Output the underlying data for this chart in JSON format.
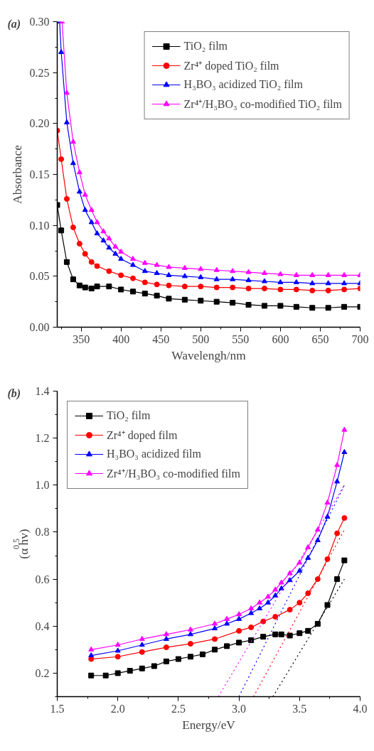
{
  "chart_data": [
    {
      "type": "line",
      "title": "(a)",
      "xlabel": "Wavelengh/nm",
      "ylabel": "Absorbance",
      "xlim": [
        320,
        700
      ],
      "xticks": [
        350,
        400,
        450,
        500,
        550,
        600,
        650,
        700
      ],
      "ylim": [
        0,
        0.3
      ],
      "yticks": [
        {
          "value": 0,
          "label": "0.00"
        },
        {
          "value": 0.05,
          "label": "0.05"
        },
        {
          "value": 0.1,
          "label": "0.10"
        },
        {
          "value": 0.15,
          "label": "0.15"
        },
        {
          "value": 0.2,
          "label": "0.20"
        },
        {
          "value": 0.25,
          "label": "0.25"
        },
        {
          "value": 0.3,
          "label": "0.30"
        }
      ],
      "grid": false,
      "legend": "top right",
      "line_style": "solid",
      "series": [
        {
          "name": "TiO₂ film",
          "color": "#000000",
          "marker": "square",
          "x": [
            320,
            325,
            332,
            340,
            348,
            355,
            363,
            370,
            385,
            400,
            415,
            430,
            445,
            460,
            480,
            500,
            520,
            540,
            560,
            580,
            600,
            620,
            640,
            660,
            680,
            700
          ],
          "values": [
            0.12,
            0.095,
            0.064,
            0.047,
            0.041,
            0.039,
            0.038,
            0.04,
            0.04,
            0.037,
            0.035,
            0.033,
            0.031,
            0.028,
            0.027,
            0.026,
            0.025,
            0.024,
            0.022,
            0.021,
            0.021,
            0.02,
            0.019,
            0.019,
            0.02,
            0.02
          ]
        },
        {
          "name": "Zr⁴⁺ doped TiO₂ film",
          "color": "#ff0000",
          "marker": "circle",
          "x": [
            320,
            325,
            332,
            340,
            348,
            355,
            363,
            370,
            385,
            400,
            415,
            430,
            445,
            460,
            480,
            500,
            520,
            540,
            560,
            580,
            600,
            620,
            640,
            660,
            680,
            700
          ],
          "values": [
            0.193,
            0.165,
            0.126,
            0.098,
            0.082,
            0.072,
            0.064,
            0.06,
            0.055,
            0.051,
            0.048,
            0.044,
            0.042,
            0.041,
            0.04,
            0.04,
            0.039,
            0.039,
            0.038,
            0.038,
            0.037,
            0.037,
            0.036,
            0.036,
            0.037,
            0.038
          ]
        },
        {
          "name": "H₃BO₃ acidized TiO₂ film",
          "color": "#0000ff",
          "marker": "triangle",
          "x": [
            323,
            325,
            332,
            340,
            348,
            355,
            363,
            370,
            378,
            385,
            393,
            400,
            415,
            430,
            445,
            460,
            480,
            500,
            520,
            540,
            560,
            580,
            600,
            620,
            640,
            660,
            680,
            700
          ],
          "values": [
            0.3,
            0.27,
            0.201,
            0.161,
            0.133,
            0.115,
            0.103,
            0.092,
            0.085,
            0.078,
            0.072,
            0.067,
            0.061,
            0.055,
            0.053,
            0.051,
            0.05,
            0.049,
            0.047,
            0.047,
            0.046,
            0.045,
            0.044,
            0.044,
            0.043,
            0.043,
            0.043,
            0.043
          ]
        },
        {
          "name": "Zr⁴⁺/H₃BO₃ co-modified TiO₂ film",
          "color": "#ff00ff",
          "marker": "triangle",
          "x": [
            326,
            332,
            340,
            348,
            355,
            363,
            370,
            378,
            385,
            393,
            400,
            415,
            430,
            445,
            460,
            480,
            500,
            520,
            540,
            560,
            580,
            600,
            620,
            640,
            660,
            680,
            700
          ],
          "values": [
            0.3,
            0.23,
            0.182,
            0.152,
            0.13,
            0.115,
            0.103,
            0.094,
            0.087,
            0.079,
            0.074,
            0.067,
            0.063,
            0.061,
            0.059,
            0.058,
            0.057,
            0.056,
            0.055,
            0.054,
            0.053,
            0.052,
            0.051,
            0.051,
            0.051,
            0.051,
            0.051
          ]
        }
      ]
    },
    {
      "type": "line",
      "title": "(b)",
      "xlabel": "Energy/eV",
      "ylabel": "(α hv)$^{0.5}$",
      "xlim": [
        1.5,
        4.0
      ],
      "xticks": [
        {
          "value": 1.5,
          "label": "1.5"
        },
        {
          "value": 2.0,
          "label": "2.0"
        },
        {
          "value": 2.5,
          "label": "2.5"
        },
        {
          "value": 3.0,
          "label": "3.0"
        },
        {
          "value": 3.5,
          "label": "3.5"
        },
        {
          "value": 4.0,
          "label": "4.0"
        }
      ],
      "ylim": [
        0.1,
        1.4
      ],
      "yticks": [
        0.2,
        0.4,
        0.6,
        0.8,
        {
          "value": 1.0,
          "label": "1.0"
        },
        1.2,
        1.4
      ],
      "grid": false,
      "legend": "top left",
      "line_style": "solid",
      "series": [
        {
          "name": "TiO₂ film",
          "color": "#000000",
          "marker": "square",
          "x": [
            1.78,
            1.9,
            2.0,
            2.1,
            2.2,
            2.3,
            2.4,
            2.5,
            2.6,
            2.7,
            2.8,
            2.9,
            3.0,
            3.1,
            3.2,
            3.3,
            3.35,
            3.42,
            3.5,
            3.57,
            3.65,
            3.73,
            3.81,
            3.87
          ],
          "values": [
            0.19,
            0.19,
            0.2,
            0.21,
            0.22,
            0.23,
            0.25,
            0.26,
            0.27,
            0.28,
            0.3,
            0.315,
            0.33,
            0.34,
            0.355,
            0.365,
            0.365,
            0.36,
            0.37,
            0.38,
            0.41,
            0.49,
            0.6,
            0.68
          ]
        },
        {
          "name": "Zr⁴⁺ doped film",
          "color": "#ff0000",
          "marker": "circle",
          "x": [
            1.78,
            2.0,
            2.2,
            2.4,
            2.6,
            2.8,
            3.0,
            3.1,
            3.2,
            3.3,
            3.42,
            3.5,
            3.57,
            3.65,
            3.73,
            3.81,
            3.87
          ],
          "values": [
            0.26,
            0.27,
            0.29,
            0.31,
            0.325,
            0.345,
            0.38,
            0.395,
            0.42,
            0.44,
            0.47,
            0.5,
            0.54,
            0.6,
            0.685,
            0.795,
            0.86
          ]
        },
        {
          "name": "H₃BO₃ acidized film",
          "color": "#0000ff",
          "marker": "triangle",
          "x": [
            1.78,
            2.0,
            2.2,
            2.4,
            2.6,
            2.8,
            2.9,
            3.0,
            3.1,
            3.17,
            3.24,
            3.3,
            3.35,
            3.42,
            3.5,
            3.57,
            3.65,
            3.73,
            3.81,
            3.87
          ],
          "values": [
            0.275,
            0.295,
            0.32,
            0.345,
            0.365,
            0.39,
            0.41,
            0.43,
            0.455,
            0.475,
            0.5,
            0.53,
            0.56,
            0.595,
            0.635,
            0.69,
            0.765,
            0.865,
            1.015,
            1.14
          ]
        },
        {
          "name": "Zr⁴⁺/H₃BO₃ co-modified film",
          "color": "#ff00ff",
          "marker": "triangle",
          "x": [
            1.78,
            2.0,
            2.2,
            2.4,
            2.6,
            2.8,
            2.9,
            3.0,
            3.1,
            3.17,
            3.24,
            3.3,
            3.35,
            3.42,
            3.5,
            3.57,
            3.65,
            3.73,
            3.81,
            3.87
          ],
          "values": [
            0.3,
            0.32,
            0.345,
            0.365,
            0.385,
            0.41,
            0.43,
            0.45,
            0.475,
            0.5,
            0.525,
            0.555,
            0.585,
            0.625,
            0.67,
            0.735,
            0.81,
            0.925,
            1.085,
            1.235
          ]
        },
        {
          "color": "#000000",
          "marker": "none",
          "line_style": "dotted",
          "x": [
            3.28,
            3.87
          ],
          "values": [
            0.1,
            0.6
          ]
        },
        {
          "color": "#ff0000",
          "marker": "none",
          "line_style": "dotted",
          "x": [
            3.12,
            3.87
          ],
          "values": [
            0.1,
            0.81
          ]
        },
        {
          "color": "#0000ff",
          "marker": "none",
          "line_style": "dotted",
          "x": [
            3.0,
            3.87
          ],
          "values": [
            0.1,
            1.0
          ]
        },
        {
          "color": "#ff00ff",
          "marker": "none",
          "line_style": "dotted",
          "x": [
            2.83,
            3.87
          ],
          "values": [
            0.1,
            1.0
          ]
        }
      ]
    }
  ]
}
